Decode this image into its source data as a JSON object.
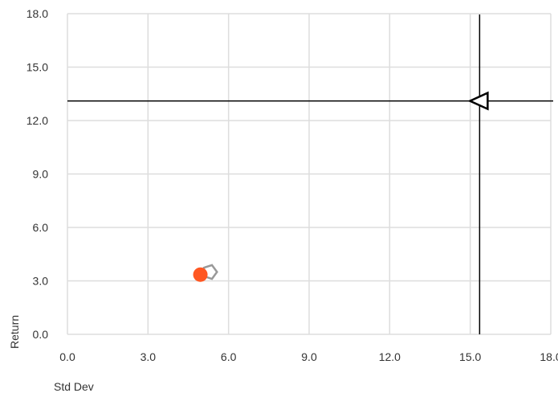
{
  "chart_data": {
    "type": "scatter",
    "title": "",
    "xlabel": "Std Dev",
    "ylabel": "Return",
    "xlim": [
      0,
      18
    ],
    "ylim": [
      0,
      18
    ],
    "xticks": [
      "0.0",
      "3.0",
      "6.0",
      "9.0",
      "12.0",
      "15.0",
      "18.0"
    ],
    "yticks": [
      "0.0",
      "3.0",
      "6.0",
      "9.0",
      "12.0",
      "15.0",
      "18.0"
    ],
    "grid": true,
    "points": [
      {
        "name": "pentagon-marker",
        "x": 5.3,
        "y": 3.5,
        "shape": "pentagon",
        "color": "#999999"
      },
      {
        "name": "circle-marker",
        "x": 4.95,
        "y": 3.35,
        "shape": "circle",
        "color": "#ff5722"
      },
      {
        "name": "triangle-marker",
        "x": 15.35,
        "y": 13.1,
        "shape": "triangle-left",
        "color": "#000000"
      }
    ],
    "crosshair": {
      "x": 15.35,
      "y": 13.1,
      "color": "#000000"
    },
    "colors": {
      "grid": "#dddddd",
      "text": "#333333"
    }
  }
}
